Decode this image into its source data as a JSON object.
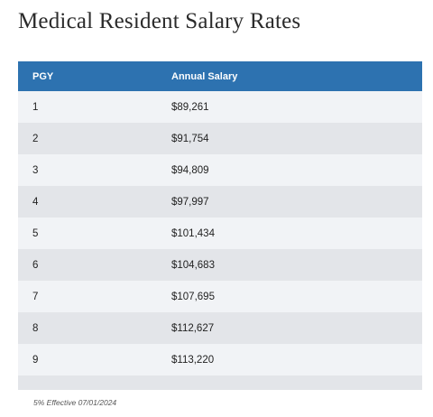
{
  "page": {
    "title": "Medical Resident Salary Rates"
  },
  "table": {
    "headers": {
      "pgy": "PGY",
      "salary": "Annual Salary"
    },
    "rows": [
      {
        "pgy": "1",
        "salary": "$89,261"
      },
      {
        "pgy": "2",
        "salary": "$91,754"
      },
      {
        "pgy": "3",
        "salary": "$94,809"
      },
      {
        "pgy": "4",
        "salary": "$97,997"
      },
      {
        "pgy": "5",
        "salary": "$101,434"
      },
      {
        "pgy": "6",
        "salary": "$104,683"
      },
      {
        "pgy": "7",
        "salary": "$107,695"
      },
      {
        "pgy": "8",
        "salary": "$112,627"
      },
      {
        "pgy": "9",
        "salary": "$113,220"
      }
    ]
  },
  "footnote": "5% Effective 07/01/2024",
  "colors": {
    "header_bg": "#2d72b0",
    "row_light": "#f1f3f6",
    "row_dark": "#e3e5e9"
  }
}
